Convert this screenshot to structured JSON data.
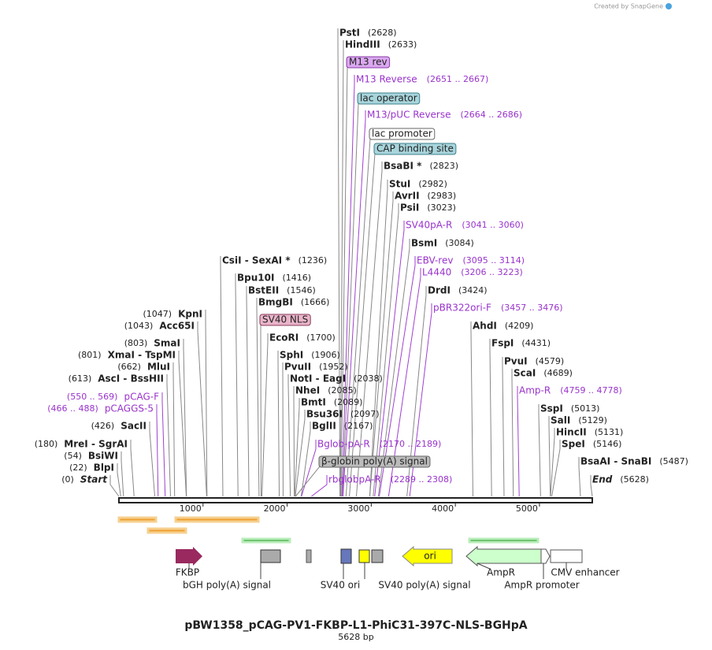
{
  "credit": "Created by SnapGene",
  "sites": [
    {
      "name": "PstI",
      "location": "(2628)",
      "kind": "site"
    },
    {
      "name": "HindIII",
      "location": "(2633)",
      "kind": "site"
    },
    {
      "name": "M13 rev",
      "kind": "feature"
    },
    {
      "name": "M13 Reverse",
      "location": "(2651 .. 2667)",
      "kind": "primer"
    },
    {
      "name": "lac operator",
      "kind": "feature"
    },
    {
      "name": "M13/pUC Reverse",
      "location": "(2664 .. 2686)",
      "kind": "primer"
    },
    {
      "name": "lac promoter",
      "kind": "feature"
    },
    {
      "name": "CAP binding site",
      "kind": "feature"
    },
    {
      "name": "BsaBI *",
      "location": "(2823)",
      "kind": "site"
    },
    {
      "name": "StuI",
      "location": "(2982)",
      "kind": "site"
    },
    {
      "name": "AvrII",
      "location": "(2983)",
      "kind": "site"
    },
    {
      "name": "PsiI",
      "location": "(3023)",
      "kind": "site"
    },
    {
      "name": "SV40pA-R",
      "location": "(3041 .. 3060)",
      "kind": "primer"
    },
    {
      "name": "BsmI",
      "location": "(3084)",
      "kind": "site"
    },
    {
      "name": "EBV-rev",
      "location": "(3095 .. 3114)",
      "kind": "primer"
    },
    {
      "name": "L4440",
      "location": "(3206 .. 3223)",
      "kind": "primer"
    },
    {
      "name": "DrdI",
      "location": "(3424)",
      "kind": "site"
    },
    {
      "name": "pBR322ori-F",
      "location": "(3457 .. 3476)",
      "kind": "primer"
    },
    {
      "name": "AhdI",
      "location": "(4209)",
      "kind": "site"
    },
    {
      "name": "FspI",
      "location": "(4431)",
      "kind": "site"
    },
    {
      "name": "PvuI",
      "location": "(4579)",
      "kind": "site"
    },
    {
      "name": "ScaI",
      "location": "(4689)",
      "kind": "site"
    },
    {
      "name": "Amp-R",
      "location": "(4759 .. 4778)",
      "kind": "primer"
    },
    {
      "name": "SspI",
      "location": "(5013)",
      "kind": "site"
    },
    {
      "name": "SalI",
      "location": "(5129)",
      "kind": "site"
    },
    {
      "name": "HincII",
      "location": "(5131)",
      "kind": "site"
    },
    {
      "name": "SpeI",
      "location": "(5146)",
      "kind": "site"
    },
    {
      "name": "BsaAI  - SnaBI",
      "location": "(5487)",
      "kind": "site"
    },
    {
      "name": "End",
      "location": "(5628)",
      "kind": "site"
    },
    {
      "name": "CsiI  - SexAI *",
      "location": "(1236)",
      "kind": "site"
    },
    {
      "name": "Bpu10I",
      "location": "(1416)",
      "kind": "site"
    },
    {
      "name": "BstEII",
      "location": "(1546)",
      "kind": "site"
    },
    {
      "name": "BmgBI",
      "location": "(1666)",
      "kind": "site"
    },
    {
      "name": "SV40 NLS",
      "kind": "feature"
    },
    {
      "name": "EcoRI",
      "location": "(1700)",
      "kind": "site"
    },
    {
      "name": "SphI",
      "location": "(1906)",
      "kind": "site"
    },
    {
      "name": "PvuII",
      "location": "(1952)",
      "kind": "site"
    },
    {
      "name": "NotI  - EagI",
      "location": "(2038)",
      "kind": "site"
    },
    {
      "name": "NheI",
      "location": "(2085)",
      "kind": "site"
    },
    {
      "name": "BmtI",
      "location": "(2089)",
      "kind": "site"
    },
    {
      "name": "Bsu36I",
      "location": "(2097)",
      "kind": "site"
    },
    {
      "name": "BglII",
      "location": "(2167)",
      "kind": "site"
    },
    {
      "name": "Bglob-pA-R",
      "location": "(2170 .. 2189)",
      "kind": "primer"
    },
    {
      "name": "β-globin poly(A) signal",
      "kind": "feature"
    },
    {
      "name": "rbglobpA-R",
      "location": "(2289 .. 2308)",
      "kind": "primer"
    },
    {
      "name": "KpnI",
      "location": "(1047)",
      "kind": "site"
    },
    {
      "name": "Acc65I",
      "location": "(1043)",
      "kind": "site"
    },
    {
      "name": "SmaI",
      "location": "(803)",
      "kind": "site"
    },
    {
      "name": "XmaI  - TspMI",
      "location": "(801)",
      "kind": "site"
    },
    {
      "name": "MluI",
      "location": "(662)",
      "kind": "site"
    },
    {
      "name": "AscI  - BssHII",
      "location": "(613)",
      "kind": "site"
    },
    {
      "name": "pCAG-F",
      "location": "(550 .. 569)",
      "kind": "primer"
    },
    {
      "name": "pCAGGS-5",
      "location": "(466 .. 488)",
      "kind": "primer"
    },
    {
      "name": "SacII",
      "location": "(426)",
      "kind": "site"
    },
    {
      "name": "MreI  - SgrAI",
      "location": "(180)",
      "kind": "site"
    },
    {
      "name": "BsiWI",
      "location": "(54)",
      "kind": "site"
    },
    {
      "name": "BlpI",
      "location": "(22)",
      "kind": "site"
    },
    {
      "name": "Start",
      "location": "(0)",
      "kind": "site"
    }
  ],
  "ruler": {
    "ticks": [
      1000,
      2000,
      3000,
      4000,
      5000
    ]
  },
  "feature_labels": [
    "FKBP",
    "bGH poly(A) signal",
    "SV40 ori",
    "SV40 poly(A) signal",
    "AmpR",
    "AmpR promoter",
    "CMV enhancer"
  ],
  "ori_label": "ori",
  "title": "pBW1358_pCAG-PV1-FKBP-L1-PhiC31-397C-NLS-BGHpA",
  "subtitle": "5628 bp"
}
